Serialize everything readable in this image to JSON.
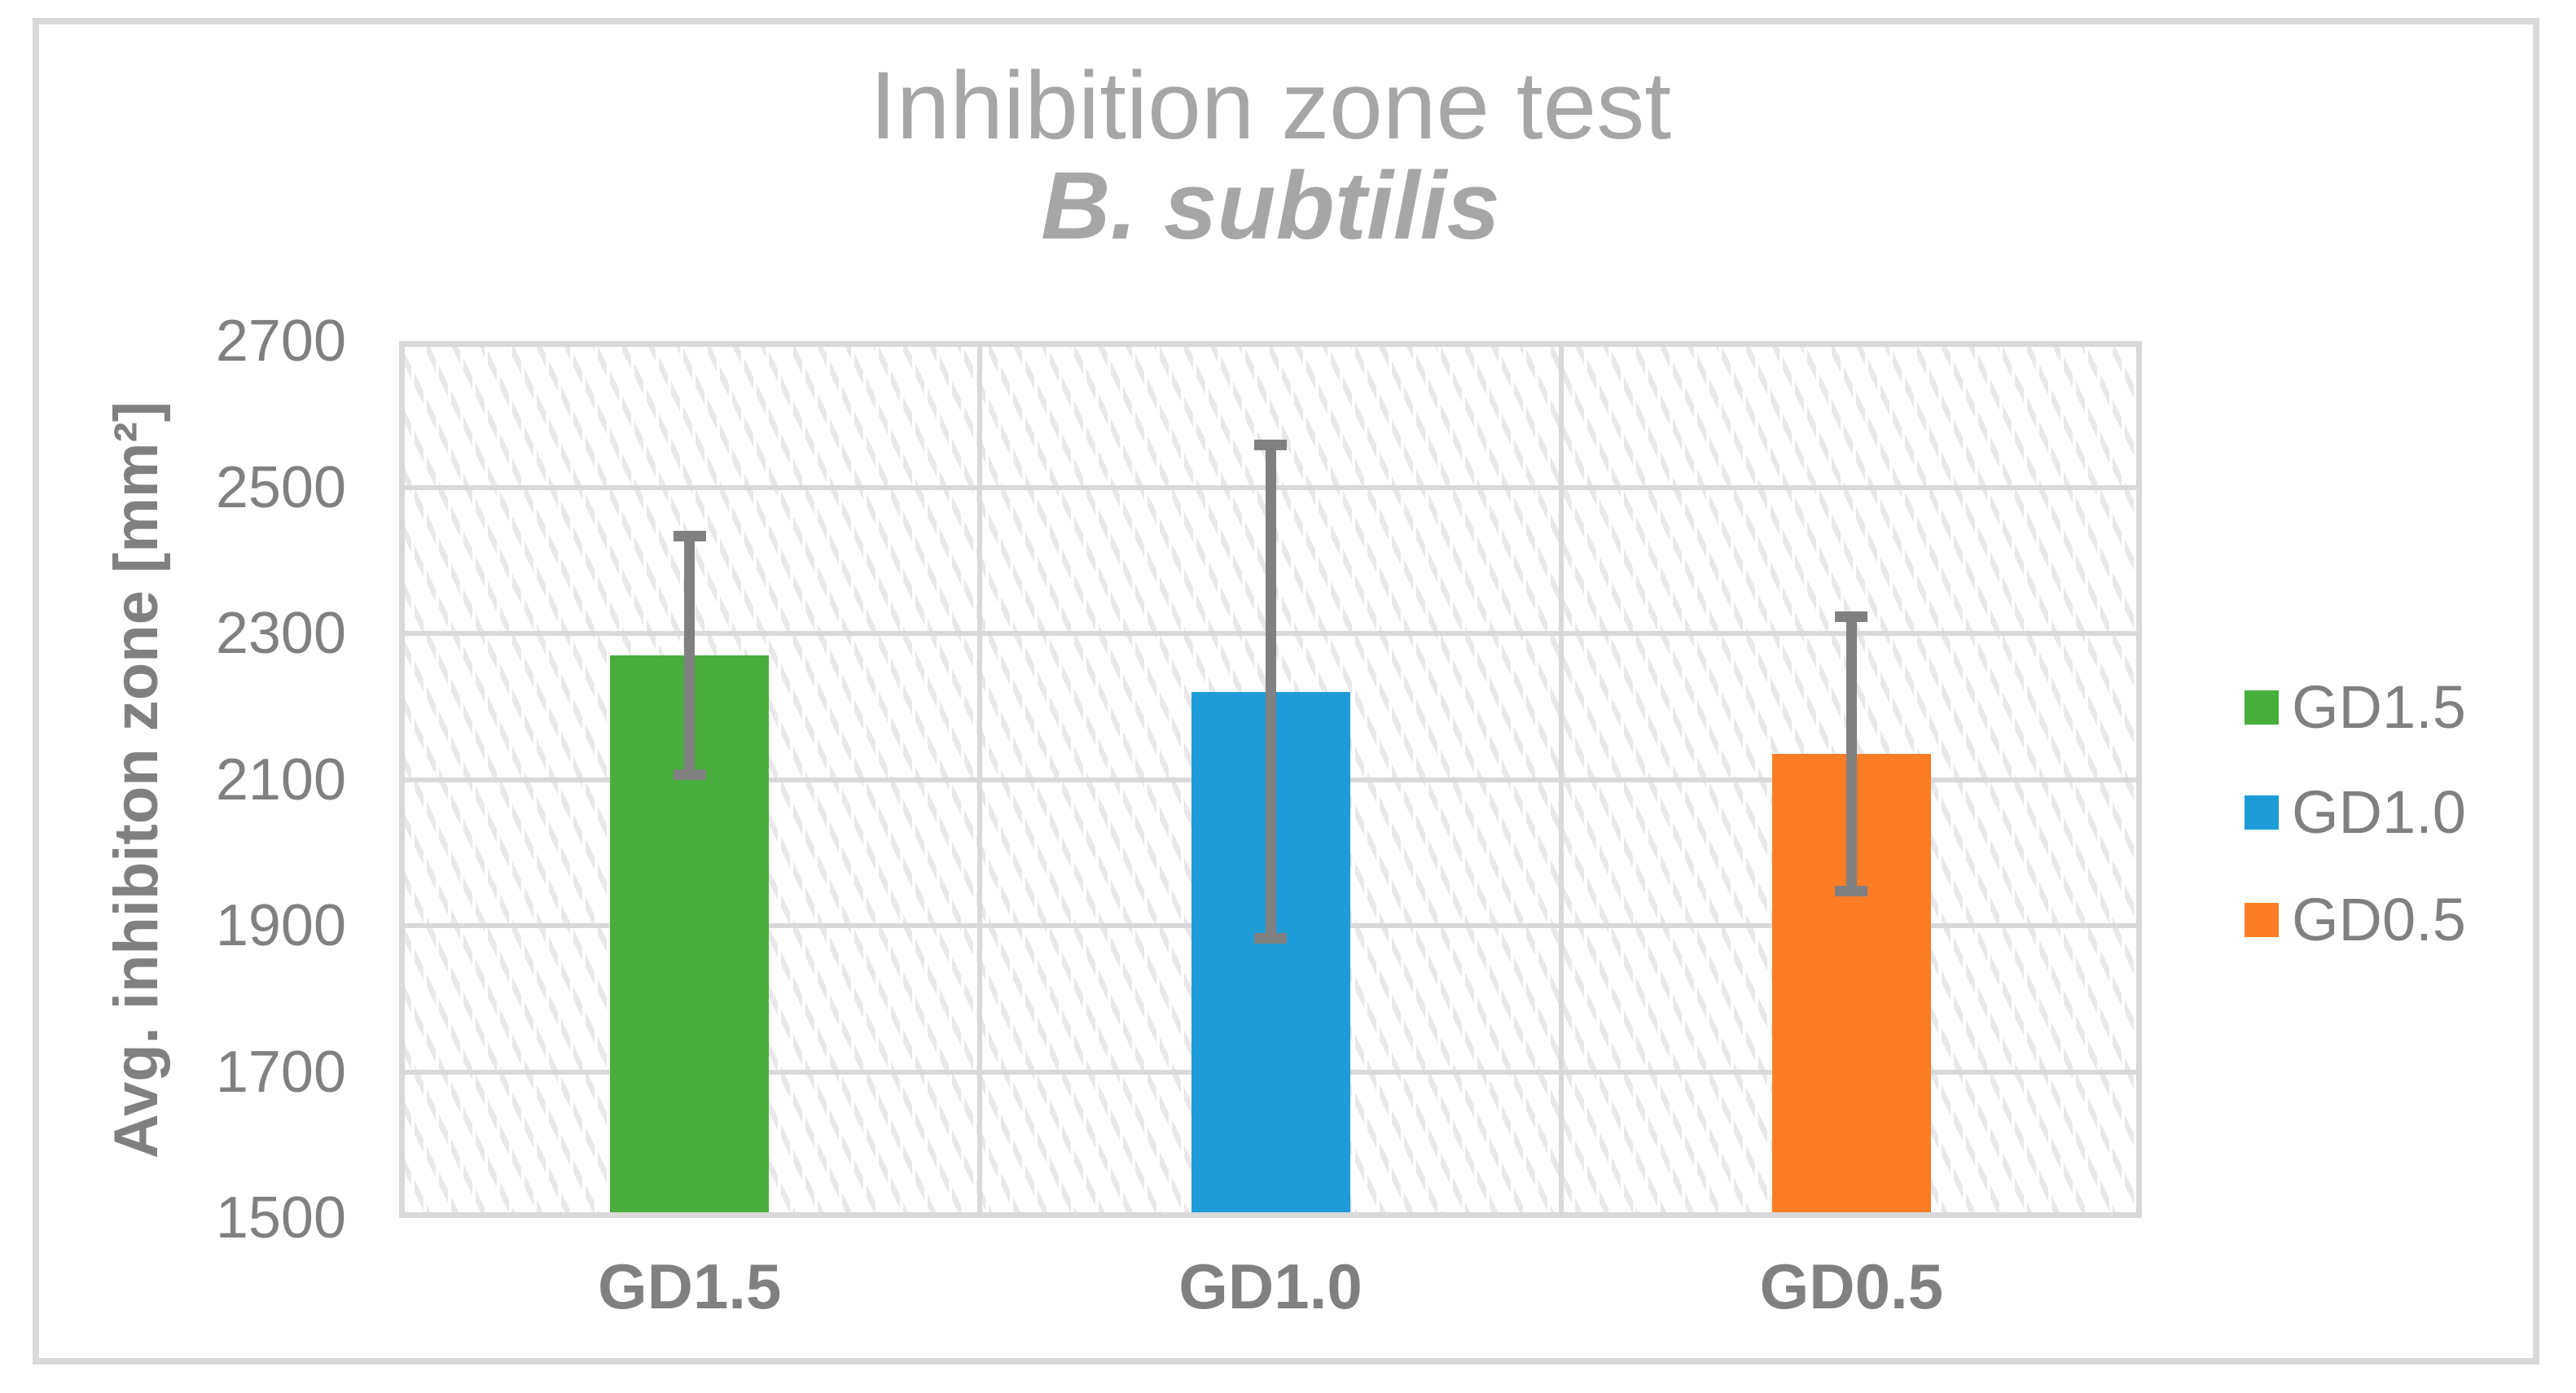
{
  "chart_data": {
    "type": "bar",
    "title": "Inhibition zone test",
    "subtitle": "B. subtilis",
    "ylabel": "Avg. inhibiton zone [mm²]",
    "xlabel": "",
    "categories": [
      "GD1.5",
      "GD1.0",
      "GD0.5"
    ],
    "series": [
      {
        "name": "GD1.5",
        "value": 2270,
        "error_plus": 170,
        "error_minus": 170,
        "color": "#47AE3B"
      },
      {
        "name": "GD1.0",
        "value": 2220,
        "error_plus": 345,
        "error_minus": 345,
        "color": "#1E9CD8"
      },
      {
        "name": "GD0.5",
        "value": 2135,
        "error_plus": 195,
        "error_minus": 195,
        "color": "#FD7D26"
      }
    ],
    "ylim": [
      1500,
      2700
    ],
    "yticks": [
      2700,
      2500,
      2300,
      2100,
      1900,
      1700,
      1500
    ],
    "grid": true,
    "plot_background": "light diagonal hatch",
    "legend_position": "right",
    "legend": [
      {
        "label": "GD1.5",
        "color": "#47AE3B"
      },
      {
        "label": "GD1.0",
        "color": "#1E9CD8"
      },
      {
        "label": "GD0.5",
        "color": "#FD7D26"
      }
    ]
  },
  "colors": {
    "grid": "#D9D9D9",
    "frame_border": "#D9D9D9",
    "error_bar": "#808080",
    "axis_text": "#808080",
    "title_text": "#A6A6A6"
  }
}
